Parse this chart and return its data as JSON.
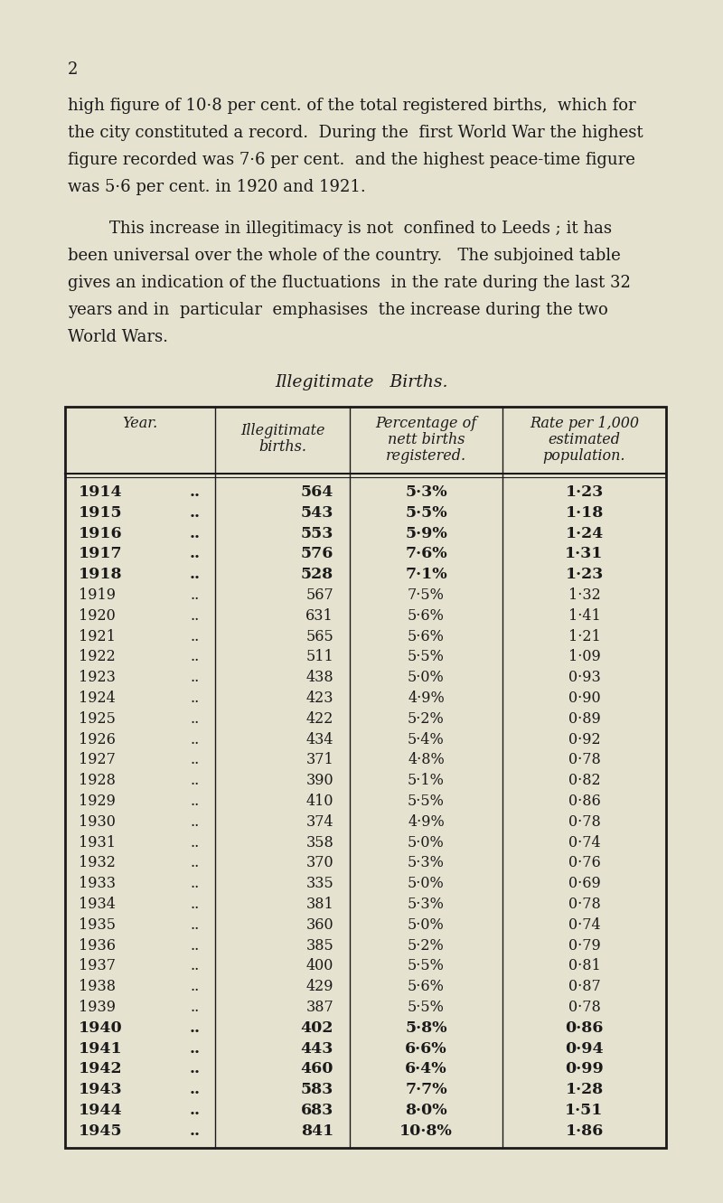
{
  "bg_color": "#e6e2d0",
  "page_num": "2",
  "para1_lines": [
    "high figure of 10·8 per cent. of the total registered births,  which for",
    "the city constituted a record.  During the  first World War the highest",
    "figure recorded was 7·6 per cent.  and the highest peace-time figure",
    "was 5·6 per cent. in 1920 and 1921."
  ],
  "para2_lines": [
    "        This increase in illegitimacy is not  confined to Leeds ; it has",
    "been universal over the whole of the country.   The subjoined table",
    "gives an indication of the fluctuations  in the rate during the last 32",
    "years and in  particular  emphasises  the increase during the two",
    "World Wars."
  ],
  "table_title": "Illegitimate   Births.",
  "col_headers": [
    "Year.",
    "Illegitimate\nbirths.",
    "Percentage of\nnett births\nregistered.",
    "Rate per 1,000\nestimated\npopulation."
  ],
  "rows": [
    [
      "1914",
      "..",
      "564",
      "5·3%",
      "1·23",
      true
    ],
    [
      "1915",
      "..",
      "543",
      "5·5%",
      "1·18",
      true
    ],
    [
      "1916",
      "..",
      "553",
      "5·9%",
      "1·24",
      true
    ],
    [
      "1917",
      "..",
      "576",
      "7·6%",
      "1·31",
      true
    ],
    [
      "1918",
      "..",
      "528",
      "7·1%",
      "1·23",
      true
    ],
    [
      "1919",
      "..",
      "567",
      "7·5%",
      "1·32",
      false
    ],
    [
      "1920",
      "..",
      "631",
      "5·6%",
      "1·41",
      false
    ],
    [
      "1921",
      "..",
      "565",
      "5·6%",
      "1·21",
      false
    ],
    [
      "1922",
      "..",
      "511",
      "5·5%",
      "1·09",
      false
    ],
    [
      "1923",
      "..",
      "438",
      "5·0%",
      "0·93",
      false
    ],
    [
      "1924",
      "..",
      "423",
      "4·9%",
      "0·90",
      false
    ],
    [
      "1925",
      "..",
      "422",
      "5·2%",
      "0·89",
      false
    ],
    [
      "1926",
      "..",
      "434",
      "5·4%",
      "0·92",
      false
    ],
    [
      "1927",
      "..",
      "371",
      "4·8%",
      "0·78",
      false
    ],
    [
      "1928",
      "..",
      "390",
      "5·1%",
      "0·82",
      false
    ],
    [
      "1929",
      "..",
      "410",
      "5·5%",
      "0·86",
      false
    ],
    [
      "1930",
      "..",
      "374",
      "4·9%",
      "0·78",
      false
    ],
    [
      "1931",
      "..",
      "358",
      "5·0%",
      "0·74",
      false
    ],
    [
      "1932",
      "..",
      "370",
      "5·3%",
      "0·76",
      false
    ],
    [
      "1933",
      "..",
      "335",
      "5·0%",
      "0·69",
      false
    ],
    [
      "1934",
      "..",
      "381",
      "5·3%",
      "0·78",
      false
    ],
    [
      "1935",
      "..",
      "360",
      "5·0%",
      "0·74",
      false
    ],
    [
      "1936",
      "..",
      "385",
      "5·2%",
      "0·79",
      false
    ],
    [
      "1937",
      "..",
      "400",
      "5·5%",
      "0·81",
      false
    ],
    [
      "1938",
      "..",
      "429",
      "5·6%",
      "0·87",
      false
    ],
    [
      "1939",
      "..",
      "387",
      "5·5%",
      "0·78",
      false
    ],
    [
      "1940",
      "..",
      "402",
      "5·8%",
      "0·86",
      true
    ],
    [
      "1941",
      "..",
      "443",
      "6·6%",
      "0·94",
      true
    ],
    [
      "1942",
      "..",
      "460",
      "6·4%",
      "0·99",
      true
    ],
    [
      "1943",
      "..",
      "583",
      "7·7%",
      "1·28",
      true
    ],
    [
      "1944",
      "..",
      "683",
      "8·0%",
      "1·51",
      true
    ],
    [
      "1945",
      "..",
      "841",
      "10·8%",
      "1·86",
      true
    ]
  ]
}
